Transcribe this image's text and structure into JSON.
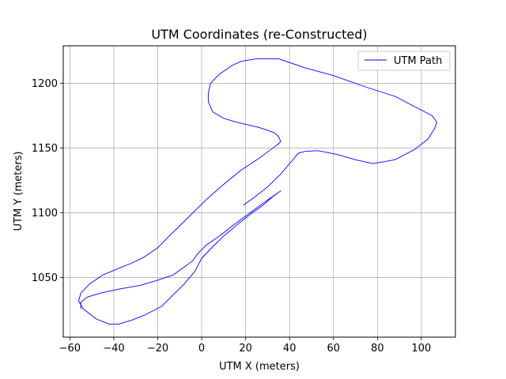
{
  "chart_data": {
    "type": "line",
    "title": "UTM Coordinates (re-Constructed)",
    "xlabel": "UTM X (meters)",
    "ylabel": "UTM Y (meters)",
    "xlim": [
      -63,
      115.5
    ],
    "ylim": [
      1004,
      1229
    ],
    "xticks": [
      -60,
      -40,
      -20,
      0,
      20,
      40,
      60,
      80,
      100
    ],
    "yticks": [
      1050,
      1100,
      1150,
      1200
    ],
    "grid": true,
    "legend": "top-right",
    "colors": {
      "series": "#0000ff",
      "grid": "#b0b0b0",
      "frame": "#000000"
    },
    "series": [
      {
        "name": "UTM Path",
        "color": "#0000ff",
        "points": [
          [
            19,
            1106
          ],
          [
            24,
            1112
          ],
          [
            30,
            1120
          ],
          [
            36,
            1130
          ],
          [
            41,
            1140
          ],
          [
            44,
            1146
          ],
          [
            47,
            1147.5
          ],
          [
            53,
            1148
          ],
          [
            62,
            1145
          ],
          [
            70,
            1141
          ],
          [
            78,
            1138
          ],
          [
            88,
            1141
          ],
          [
            97,
            1149
          ],
          [
            103,
            1157
          ],
          [
            106,
            1165
          ],
          [
            107,
            1170
          ],
          [
            105,
            1175
          ],
          [
            97,
            1182
          ],
          [
            88,
            1190
          ],
          [
            75,
            1197
          ],
          [
            60,
            1206
          ],
          [
            47,
            1212
          ],
          [
            35,
            1219
          ],
          [
            25,
            1219
          ],
          [
            18,
            1217
          ],
          [
            14,
            1214
          ],
          [
            8,
            1207
          ],
          [
            4,
            1200
          ],
          [
            3,
            1192
          ],
          [
            3,
            1186
          ],
          [
            5,
            1178
          ],
          [
            10,
            1173
          ],
          [
            16,
            1170
          ],
          [
            26,
            1166
          ],
          [
            33,
            1162
          ],
          [
            35,
            1159
          ],
          [
            36,
            1155
          ],
          [
            34,
            1152
          ],
          [
            26,
            1142
          ],
          [
            18,
            1133
          ],
          [
            10,
            1122
          ],
          [
            2,
            1110
          ],
          [
            -4,
            1100
          ],
          [
            -10,
            1090
          ],
          [
            -16,
            1080
          ],
          [
            -20,
            1073
          ],
          [
            -26,
            1066
          ],
          [
            -32,
            1061
          ],
          [
            -38,
            1057
          ],
          [
            -45,
            1052
          ],
          [
            -51,
            1045
          ],
          [
            -55,
            1038
          ],
          [
            -56,
            1032
          ],
          [
            -54,
            1026
          ],
          [
            -48,
            1018
          ],
          [
            -42,
            1014
          ],
          [
            -38,
            1014
          ],
          [
            -32,
            1017
          ],
          [
            -26,
            1021
          ],
          [
            -18,
            1028
          ],
          [
            -14,
            1035
          ],
          [
            -8,
            1045
          ],
          [
            -3,
            1055
          ],
          [
            0,
            1065
          ],
          [
            4,
            1072
          ],
          [
            10,
            1082
          ],
          [
            17,
            1092
          ],
          [
            23,
            1100
          ],
          [
            28,
            1106
          ],
          [
            32,
            1112
          ],
          [
            36,
            1117
          ],
          [
            30,
            1110
          ],
          [
            22,
            1100
          ],
          [
            14,
            1090
          ],
          [
            8,
            1082
          ],
          [
            2,
            1075
          ],
          [
            -2,
            1068
          ],
          [
            -4,
            1063
          ],
          [
            -8,
            1058
          ],
          [
            -13,
            1052
          ],
          [
            -20,
            1048
          ],
          [
            -28,
            1044
          ],
          [
            -38,
            1041
          ],
          [
            -46,
            1038
          ],
          [
            -52,
            1035
          ],
          [
            -55,
            1031
          ],
          [
            -55,
            1026
          ]
        ]
      }
    ]
  }
}
